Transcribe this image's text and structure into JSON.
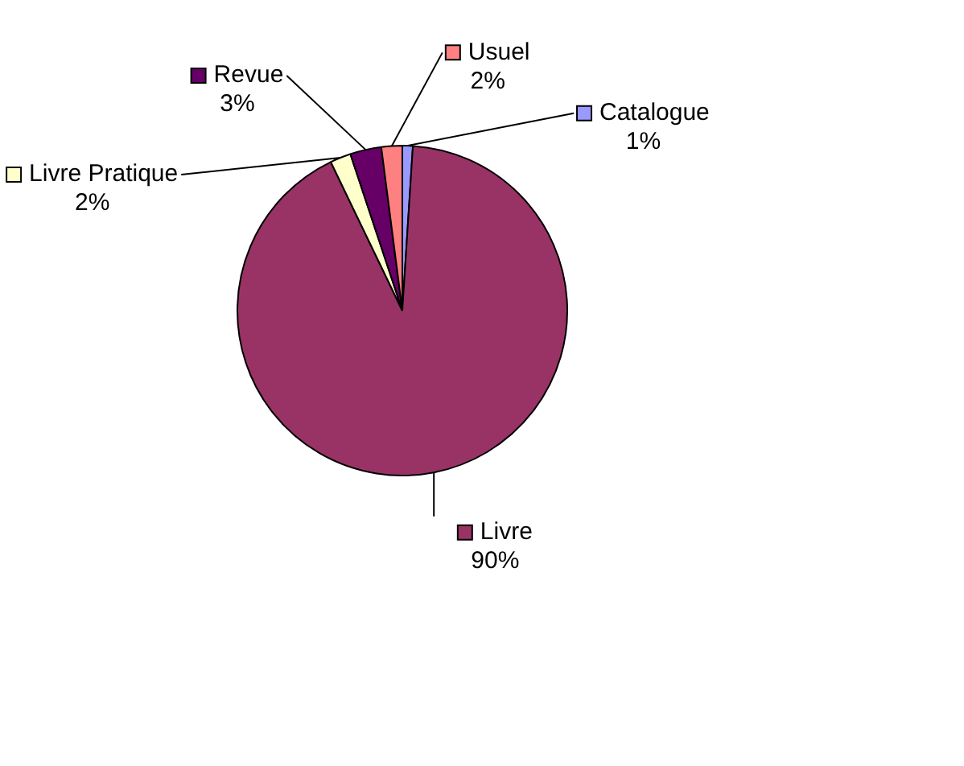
{
  "chart_data": {
    "type": "pie",
    "categories": [
      "Catalogue",
      "Livre",
      "Livre Pratique",
      "Revue",
      "Usuel"
    ],
    "values": [
      1,
      90,
      2,
      3,
      2
    ],
    "value_labels": [
      "1%",
      "90%",
      "2%",
      "3%",
      "2%"
    ],
    "colors": [
      "#9999ff",
      "#993366",
      "#ffffcc",
      "#660066",
      "#ff8080"
    ],
    "legend": "top"
  }
}
